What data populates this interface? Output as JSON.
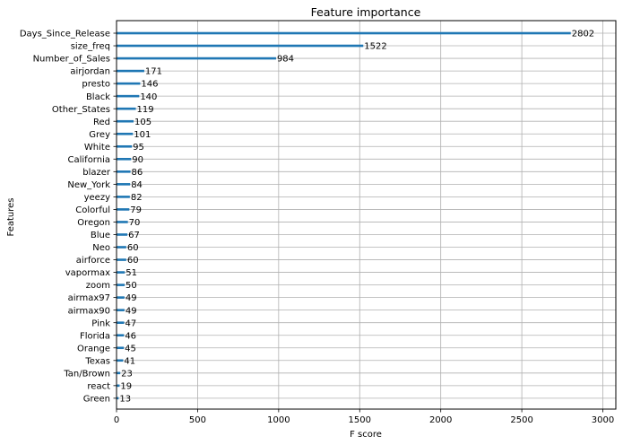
{
  "chart_data": {
    "type": "bar",
    "orientation": "horizontal",
    "title": "Feature importance",
    "xlabel": "F score",
    "ylabel": "Features",
    "xlim": [
      0,
      3080
    ],
    "xticks": [
      0,
      500,
      1000,
      1500,
      2000,
      2500,
      3000
    ],
    "grid": true,
    "bar_color": "#1f77b4",
    "categories": [
      "Days_Since_Release",
      "size_freq",
      "Number_of_Sales",
      "airjordan",
      "presto",
      "Black",
      "Other_States",
      "Red",
      "Grey",
      "White",
      "California",
      "blazer",
      "New_York",
      "yeezy",
      "Colorful",
      "Oregon",
      "Blue",
      "Neo",
      "airforce",
      "vapormax",
      "zoom",
      "airmax97",
      "airmax90",
      "Pink",
      "Florida",
      "Orange",
      "Texas",
      "Tan/Brown",
      "react",
      "Green"
    ],
    "values": [
      2802,
      1522,
      984,
      171,
      146,
      140,
      119,
      105,
      101,
      95,
      90,
      86,
      84,
      82,
      79,
      70,
      67,
      60,
      60,
      51,
      50,
      49,
      49,
      47,
      46,
      45,
      41,
      23,
      19,
      13
    ]
  }
}
